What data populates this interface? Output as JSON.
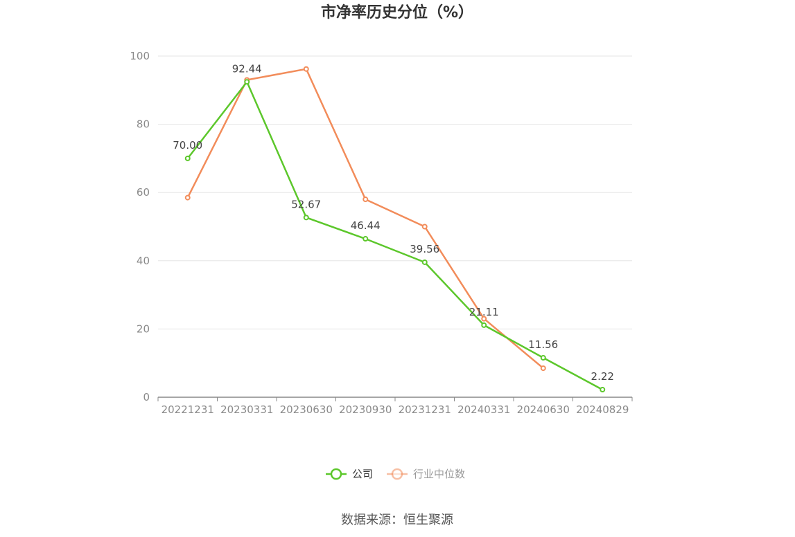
{
  "chart_data": {
    "type": "line",
    "title": "市净率历史分位（%）",
    "categories": [
      "20221231",
      "20230331",
      "20230630",
      "20230930",
      "20231231",
      "20240331",
      "20240630",
      "20240829"
    ],
    "ylim": [
      0,
      100
    ],
    "yticks": [
      0,
      20,
      40,
      60,
      80,
      100
    ],
    "grid": true,
    "legend_position": "bottom",
    "series": [
      {
        "name": "公司",
        "color": "#5cc72b",
        "values": [
          70.0,
          92.44,
          52.67,
          46.44,
          39.56,
          21.11,
          11.56,
          2.22
        ],
        "labels": [
          "70.00",
          "92.44",
          "52.67",
          "46.44",
          "39.56",
          "21.11",
          "11.56",
          "2.22"
        ]
      },
      {
        "name": "行业中位数",
        "color": "#f28c5a",
        "values": [
          58.5,
          93.0,
          96.2,
          58.0,
          50.0,
          23.0,
          8.5,
          null
        ]
      }
    ]
  },
  "source": "数据来源：恒生聚源"
}
